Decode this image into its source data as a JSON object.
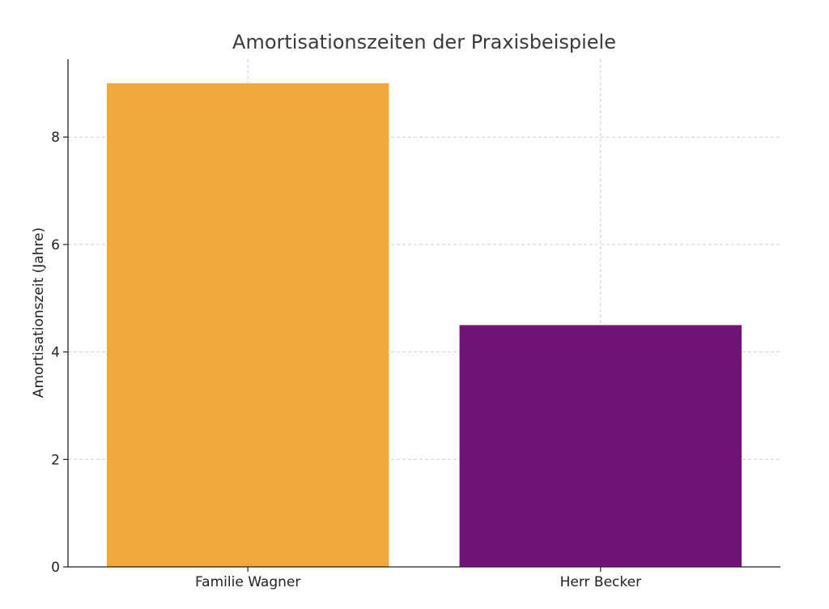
{
  "chart_data": {
    "type": "bar",
    "title": "Amortisationszeiten der Praxisbeispiele",
    "xlabel": "",
    "ylabel": "Amortisationszeit (Jahre)",
    "categories": [
      "Familie Wagner",
      "Herr Becker"
    ],
    "values": [
      9,
      4.5
    ],
    "colors": [
      "#efa83b",
      "#721378"
    ],
    "ylim": [
      0,
      9.45
    ],
    "yticks": [
      0,
      2,
      4,
      6,
      8
    ],
    "ytick_labels": [
      "0",
      "2",
      "4",
      "6",
      "8"
    ],
    "grid": true
  }
}
